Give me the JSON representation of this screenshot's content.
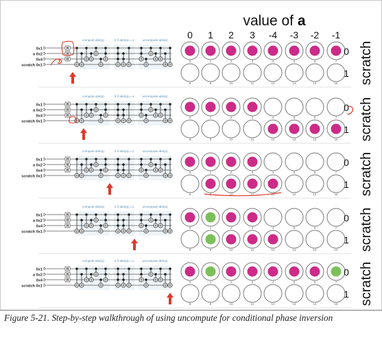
{
  "header": {
    "title_prefix": "value of ",
    "title_var": "a"
  },
  "column_values": [
    "0",
    "1",
    "2",
    "3",
    "-4",
    "-3",
    "-2",
    "-1"
  ],
  "row_values": [
    "0",
    "1"
  ],
  "side_label": "scratch",
  "register_labels": [
    "0x1",
    "a 0x2",
    "0x4",
    "scratch 0x1"
  ],
  "gate_label": "H",
  "section_labels": [
    "compute abs(a)",
    "Z if abs(a)==1",
    "uncompute abs(a)"
  ],
  "circle_numbers": [
    "0",
    "1",
    "2",
    "3",
    "4",
    "5",
    "6",
    "7",
    "8",
    "9",
    "10",
    "11",
    "12",
    "13",
    "14",
    "15"
  ],
  "colors": {
    "magenta": "#cc2b88",
    "green": "#7cc05a",
    "red_marker": "#e03a2a",
    "circle_stroke": "#777777"
  },
  "steps": [
    {
      "fills": [
        "m",
        "m",
        "m",
        "m",
        "m",
        "m",
        "m",
        "m",
        "",
        "",
        "",
        "",
        "",
        "",
        "",
        ""
      ]
    },
    {
      "fills": [
        "m",
        "m",
        "m",
        "m",
        "",
        "",
        "",
        "",
        "",
        "",
        "",
        "",
        "m",
        "m",
        "m",
        "m"
      ]
    },
    {
      "fills": [
        "m",
        "m",
        "m",
        "m",
        "",
        "",
        "",
        "",
        "",
        "m",
        "m",
        "m",
        "m",
        "",
        "",
        ""
      ]
    },
    {
      "fills": [
        "m",
        "g",
        "m",
        "m",
        "",
        "",
        "",
        "",
        "",
        "g",
        "m",
        "m",
        "m",
        "",
        "",
        ""
      ]
    },
    {
      "fills": [
        "m",
        "g",
        "m",
        "m",
        "m",
        "m",
        "m",
        "g",
        "",
        "",
        "",
        "",
        "",
        "",
        "",
        ""
      ]
    }
  ],
  "caption": "Figure 5-21. Step-by-step walkthrough of using uncompute for conditional phase inversion"
}
